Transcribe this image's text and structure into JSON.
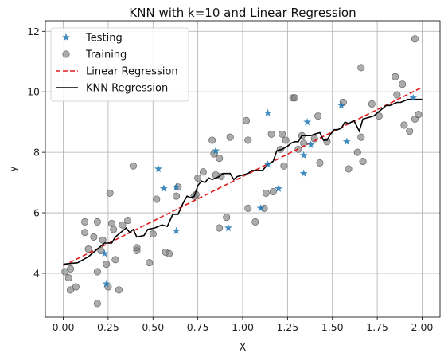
{
  "chart_data": {
    "type": "scatter",
    "title": "KNN with k=10 and Linear Regression",
    "xlabel": "X",
    "ylabel": "y",
    "xlim": [
      -0.1,
      2.1
    ],
    "ylim": [
      2.55,
      12.35
    ],
    "xticks": [
      "0.00",
      "0.25",
      "0.50",
      "0.75",
      "1.00",
      "1.25",
      "1.50",
      "1.75",
      "2.00"
    ],
    "yticks": [
      "4",
      "6",
      "8",
      "10",
      "12"
    ],
    "grid": true,
    "legend_position": "top-left",
    "legend": [
      {
        "label": "Testing",
        "marker": "star",
        "color": "#1f77b4"
      },
      {
        "label": "Training",
        "marker": "circle",
        "color": "#808080"
      },
      {
        "label": "Linear Regression",
        "marker": "dashed-line",
        "color": "#e41a1c"
      },
      {
        "label": "KNN Regression",
        "marker": "line",
        "color": "#000000"
      }
    ],
    "series": [
      {
        "name": "Testing",
        "type": "scatter",
        "color": "#1f77b4",
        "points": [
          [
            0.23,
            4.65
          ],
          [
            0.24,
            3.65
          ],
          [
            0.53,
            7.45
          ],
          [
            0.56,
            6.8
          ],
          [
            0.63,
            6.85
          ],
          [
            0.63,
            5.4
          ],
          [
            0.85,
            8.05
          ],
          [
            0.92,
            5.5
          ],
          [
            1.1,
            6.15
          ],
          [
            1.14,
            9.3
          ],
          [
            1.14,
            7.6
          ],
          [
            1.2,
            6.8
          ],
          [
            1.34,
            7.3
          ],
          [
            1.34,
            7.9
          ],
          [
            1.36,
            9.0
          ],
          [
            1.38,
            8.25
          ],
          [
            1.55,
            9.55
          ],
          [
            1.58,
            8.35
          ],
          [
            1.95,
            9.8
          ]
        ]
      },
      {
        "name": "Training",
        "type": "scatter",
        "color": "#808080",
        "points": [
          [
            0.01,
            4.05
          ],
          [
            0.03,
            3.85
          ],
          [
            0.04,
            4.15
          ],
          [
            0.04,
            3.45
          ],
          [
            0.07,
            3.55
          ],
          [
            0.12,
            5.7
          ],
          [
            0.12,
            5.35
          ],
          [
            0.14,
            4.8
          ],
          [
            0.17,
            5.2
          ],
          [
            0.19,
            3.0
          ],
          [
            0.19,
            4.05
          ],
          [
            0.19,
            5.7
          ],
          [
            0.21,
            4.75
          ],
          [
            0.22,
            5.1
          ],
          [
            0.24,
            4.3
          ],
          [
            0.25,
            3.55
          ],
          [
            0.26,
            6.65
          ],
          [
            0.27,
            5.65
          ],
          [
            0.28,
            5.45
          ],
          [
            0.29,
            4.45
          ],
          [
            0.31,
            3.45
          ],
          [
            0.33,
            5.6
          ],
          [
            0.36,
            5.75
          ],
          [
            0.39,
            7.55
          ],
          [
            0.41,
            4.75
          ],
          [
            0.41,
            4.85
          ],
          [
            0.48,
            4.35
          ],
          [
            0.5,
            5.3
          ],
          [
            0.52,
            6.45
          ],
          [
            0.57,
            4.7
          ],
          [
            0.59,
            4.65
          ],
          [
            0.63,
            6.55
          ],
          [
            0.64,
            6.85
          ],
          [
            0.73,
            6.55
          ],
          [
            0.74,
            6.6
          ],
          [
            0.75,
            7.15
          ],
          [
            0.78,
            7.35
          ],
          [
            0.83,
            8.4
          ],
          [
            0.84,
            7.95
          ],
          [
            0.85,
            7.25
          ],
          [
            0.87,
            7.8
          ],
          [
            0.87,
            5.5
          ],
          [
            0.88,
            7.2
          ],
          [
            0.91,
            5.85
          ],
          [
            0.93,
            8.5
          ],
          [
            1.02,
            9.05
          ],
          [
            1.03,
            6.15
          ],
          [
            1.03,
            8.4
          ],
          [
            1.07,
            5.7
          ],
          [
            1.12,
            6.15
          ],
          [
            1.13,
            6.65
          ],
          [
            1.16,
            8.6
          ],
          [
            1.17,
            6.7
          ],
          [
            1.21,
            8.1
          ],
          [
            1.22,
            8.6
          ],
          [
            1.23,
            7.55
          ],
          [
            1.24,
            8.4
          ],
          [
            1.28,
            9.8
          ],
          [
            1.29,
            9.8
          ],
          [
            1.31,
            8.1
          ],
          [
            1.33,
            8.55
          ],
          [
            1.34,
            8.3
          ],
          [
            1.4,
            8.45
          ],
          [
            1.42,
            9.2
          ],
          [
            1.43,
            7.65
          ],
          [
            1.47,
            8.35
          ],
          [
            1.56,
            9.65
          ],
          [
            1.59,
            7.45
          ],
          [
            1.64,
            8.0
          ],
          [
            1.66,
            8.5
          ],
          [
            1.66,
            10.8
          ],
          [
            1.67,
            7.7
          ],
          [
            1.72,
            9.6
          ],
          [
            1.76,
            9.2
          ],
          [
            1.85,
            10.5
          ],
          [
            1.86,
            9.9
          ],
          [
            1.89,
            10.25
          ],
          [
            1.9,
            8.9
          ],
          [
            1.93,
            8.7
          ],
          [
            1.96,
            9.1
          ],
          [
            1.96,
            11.75
          ],
          [
            1.98,
            9.25
          ]
        ]
      },
      {
        "name": "Linear Regression",
        "type": "line",
        "style": "dashed",
        "color": "#e41a1c",
        "points": [
          [
            0.0,
            4.25
          ],
          [
            2.0,
            10.15
          ]
        ]
      },
      {
        "name": "KNN Regression",
        "type": "line",
        "color": "#000000",
        "points": [
          [
            0.0,
            4.3
          ],
          [
            0.08,
            4.35
          ],
          [
            0.14,
            4.55
          ],
          [
            0.18,
            4.75
          ],
          [
            0.2,
            4.85
          ],
          [
            0.23,
            5.0
          ],
          [
            0.27,
            5.0
          ],
          [
            0.29,
            5.2
          ],
          [
            0.31,
            5.3
          ],
          [
            0.33,
            5.4
          ],
          [
            0.35,
            5.5
          ],
          [
            0.37,
            5.35
          ],
          [
            0.39,
            5.45
          ],
          [
            0.41,
            5.2
          ],
          [
            0.45,
            5.25
          ],
          [
            0.47,
            5.45
          ],
          [
            0.51,
            5.5
          ],
          [
            0.55,
            5.6
          ],
          [
            0.58,
            5.55
          ],
          [
            0.61,
            5.95
          ],
          [
            0.64,
            5.95
          ],
          [
            0.67,
            6.35
          ],
          [
            0.69,
            6.55
          ],
          [
            0.71,
            6.5
          ],
          [
            0.73,
            6.55
          ],
          [
            0.75,
            6.9
          ],
          [
            0.77,
            7.05
          ],
          [
            0.79,
            7.0
          ],
          [
            0.81,
            7.15
          ],
          [
            0.83,
            7.1
          ],
          [
            0.85,
            7.15
          ],
          [
            0.87,
            7.2
          ],
          [
            0.89,
            7.3
          ],
          [
            0.93,
            7.3
          ],
          [
            0.95,
            7.1
          ],
          [
            0.97,
            7.2
          ],
          [
            1.0,
            7.25
          ],
          [
            1.03,
            7.3
          ],
          [
            1.05,
            7.4
          ],
          [
            1.11,
            7.4
          ],
          [
            1.14,
            7.6
          ],
          [
            1.17,
            7.7
          ],
          [
            1.19,
            8.05
          ],
          [
            1.22,
            8.1
          ],
          [
            1.25,
            8.2
          ],
          [
            1.27,
            8.3
          ],
          [
            1.29,
            8.35
          ],
          [
            1.31,
            8.35
          ],
          [
            1.33,
            8.55
          ],
          [
            1.38,
            8.55
          ],
          [
            1.4,
            8.6
          ],
          [
            1.43,
            8.65
          ],
          [
            1.45,
            8.4
          ],
          [
            1.47,
            8.4
          ],
          [
            1.49,
            8.6
          ],
          [
            1.51,
            8.75
          ],
          [
            1.53,
            8.75
          ],
          [
            1.55,
            8.8
          ],
          [
            1.57,
            9.0
          ],
          [
            1.59,
            8.95
          ],
          [
            1.62,
            9.05
          ],
          [
            1.65,
            8.7
          ],
          [
            1.67,
            9.1
          ],
          [
            1.7,
            9.15
          ],
          [
            1.73,
            9.2
          ],
          [
            1.76,
            9.35
          ],
          [
            1.78,
            9.45
          ],
          [
            1.8,
            9.55
          ],
          [
            1.82,
            9.55
          ],
          [
            1.84,
            9.6
          ],
          [
            1.86,
            9.65
          ],
          [
            1.88,
            9.65
          ],
          [
            1.9,
            9.7
          ],
          [
            1.92,
            9.75
          ],
          [
            2.0,
            9.75
          ]
        ]
      }
    ]
  }
}
